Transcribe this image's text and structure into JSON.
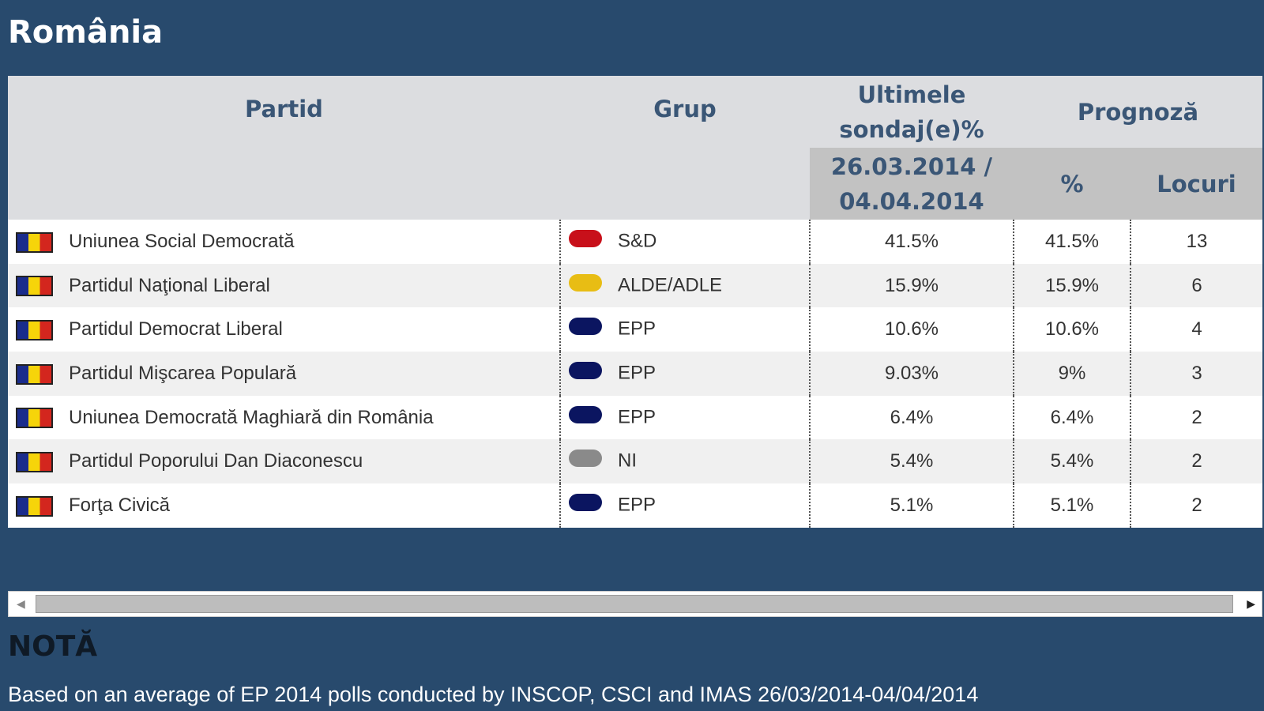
{
  "title": "România",
  "headers": {
    "party": "Partid",
    "group": "Grup",
    "polls": "Ultimele sondaj(e)%",
    "forecast": "Prognoză",
    "date": "26.03.2014 / 04.04.2014",
    "pct": "%",
    "seats": "Locuri"
  },
  "rows": [
    {
      "party": "Uniunea Social Democrată",
      "group": "S&D",
      "color": "#c8101a",
      "poll": "41.5%",
      "pct": "41.5%",
      "seats": "13"
    },
    {
      "party": "Partidul Naţional Liberal",
      "group": "ALDE/ADLE",
      "color": "#e8bd14",
      "poll": "15.9%",
      "pct": "15.9%",
      "seats": "6"
    },
    {
      "party": "Partidul Democrat Liberal",
      "group": "EPP",
      "color": "#0b1560",
      "poll": "10.6%",
      "pct": "10.6%",
      "seats": "4"
    },
    {
      "party": "Partidul Mişcarea Populară",
      "group": "EPP",
      "color": "#0b1560",
      "poll": "9.03%",
      "pct": "9%",
      "seats": "3"
    },
    {
      "party": "Uniunea Democrată Maghiară din România",
      "group": "EPP",
      "color": "#0b1560",
      "poll": "6.4%",
      "pct": "6.4%",
      "seats": "2"
    },
    {
      "party": "Partidul Poporului Dan Diaconescu",
      "group": "NI",
      "color": "#8a8a8a",
      "poll": "5.4%",
      "pct": "5.4%",
      "seats": "2"
    },
    {
      "party": "Forţa Civică",
      "group": "EPP",
      "color": "#0b1560",
      "poll": "5.1%",
      "pct": "5.1%",
      "seats": "2"
    }
  ],
  "note_title": "NOTĂ",
  "note": "Based on an average of EP 2014 polls conducted by INSCOP, CSCI and IMAS 26/03/2014-04/04/2014"
}
